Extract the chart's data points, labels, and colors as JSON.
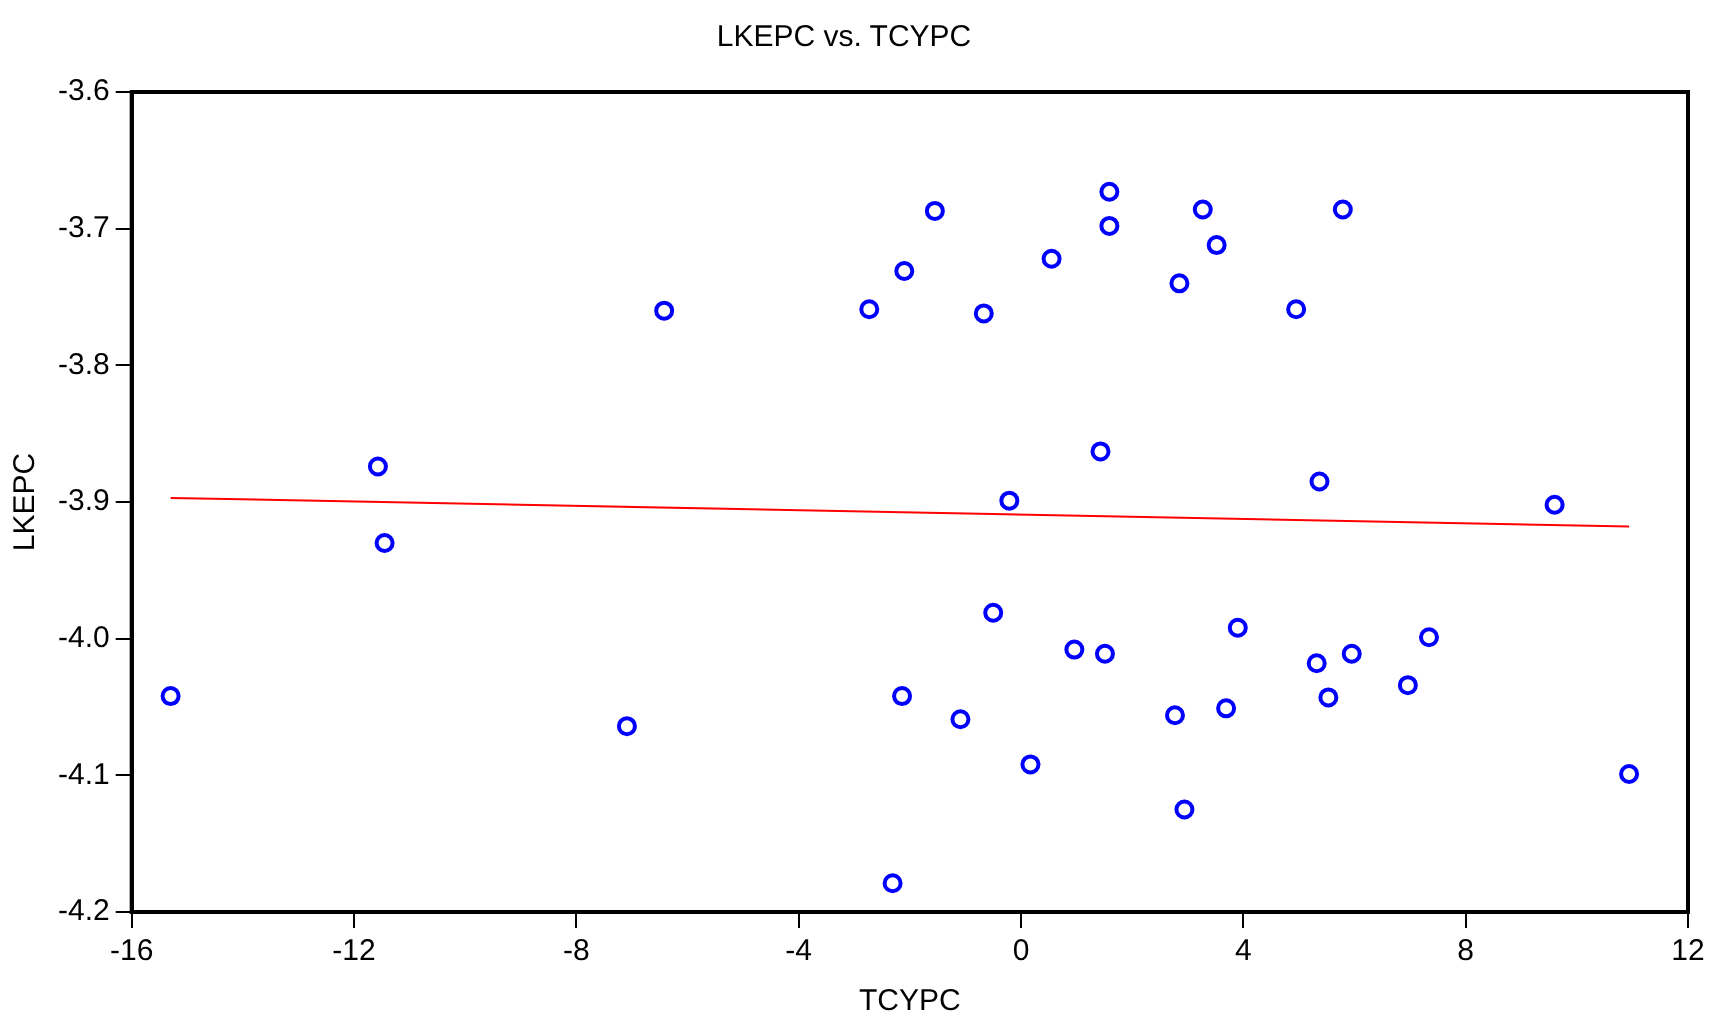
{
  "chart_data": {
    "type": "scatter",
    "title": "LKEPC vs. TCYPC",
    "xlabel": "TCYPC",
    "ylabel": "LKEPC",
    "xlim": [
      -16,
      12
    ],
    "xticks": [
      -16,
      -12,
      -8,
      -4,
      0,
      4,
      8,
      12
    ],
    "ylim": [
      -4.2,
      -3.6
    ],
    "yticks": [
      -4.2,
      -4.1,
      {
        "value": -4,
        "label": "-4.0"
      },
      -3.9,
      -3.8,
      -3.7,
      -3.6
    ],
    "grid": false,
    "legend": false,
    "series": [
      {
        "marker": "circle",
        "color": "#0000ff",
        "x": [
          -15.3,
          -11.57,
          -11.45,
          -7.09,
          -6.42,
          -2.73,
          -2.1,
          -1.55,
          -2.14,
          -2.31,
          -1.09,
          -0.67,
          -0.5,
          -0.21,
          0.17,
          0.55,
          0.96,
          1.43,
          1.51,
          1.59,
          1.59,
          2.77,
          2.85,
          2.94,
          3.27,
          3.52,
          3.69,
          3.9,
          4.95,
          5.32,
          5.37,
          5.53,
          5.79,
          5.95,
          6.96,
          7.34,
          9.6,
          10.94
        ],
        "values": [
          -4.042,
          -3.874,
          -3.93,
          -4.064,
          -3.76,
          -3.759,
          -3.731,
          -3.687,
          -4.042,
          -4.179,
          -4.059,
          -3.762,
          -3.981,
          -3.899,
          -4.092,
          -3.722,
          -4.008,
          -3.863,
          -4.011,
          -3.673,
          -3.698,
          -4.056,
          -3.74,
          -4.125,
          -3.686,
          -3.712,
          -4.051,
          -3.992,
          -3.759,
          -4.018,
          -3.885,
          -4.043,
          -3.686,
          -4.011,
          -4.034,
          -3.999,
          -3.902,
          -4.099
        ]
      },
      {
        "type": "line",
        "color": "#ff0000",
        "line_style": "solid",
        "x": [
          -15.3,
          10.94
        ],
        "values": [
          -3.897,
          -3.918
        ]
      }
    ]
  }
}
